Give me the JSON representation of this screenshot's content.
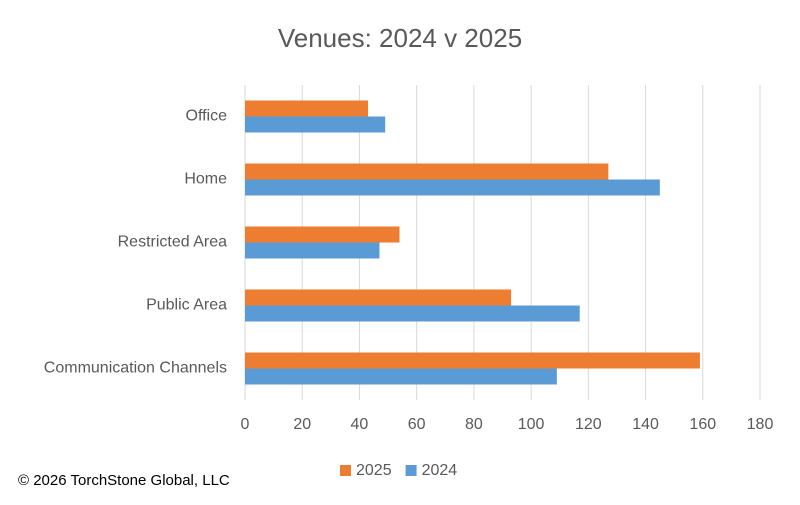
{
  "chart_data": {
    "type": "hbar",
    "title": "Venues: 2024 v 2025",
    "categories": [
      "Office",
      "Home",
      "Restricted Area",
      "Public Area",
      "Communication Channels"
    ],
    "series": [
      {
        "name": "2025",
        "color": "#ed7d31",
        "values": [
          43,
          127,
          54,
          93,
          159
        ]
      },
      {
        "name": "2024",
        "color": "#5b9bd5",
        "values": [
          49,
          145,
          47,
          117,
          109
        ]
      }
    ],
    "xlim": [
      0,
      180
    ],
    "xticks": [
      0,
      20,
      40,
      60,
      80,
      100,
      120,
      140,
      160,
      180
    ],
    "grid": true,
    "legend": "bottom"
  },
  "footer": "© 2026 TorchStone Global, LLC"
}
